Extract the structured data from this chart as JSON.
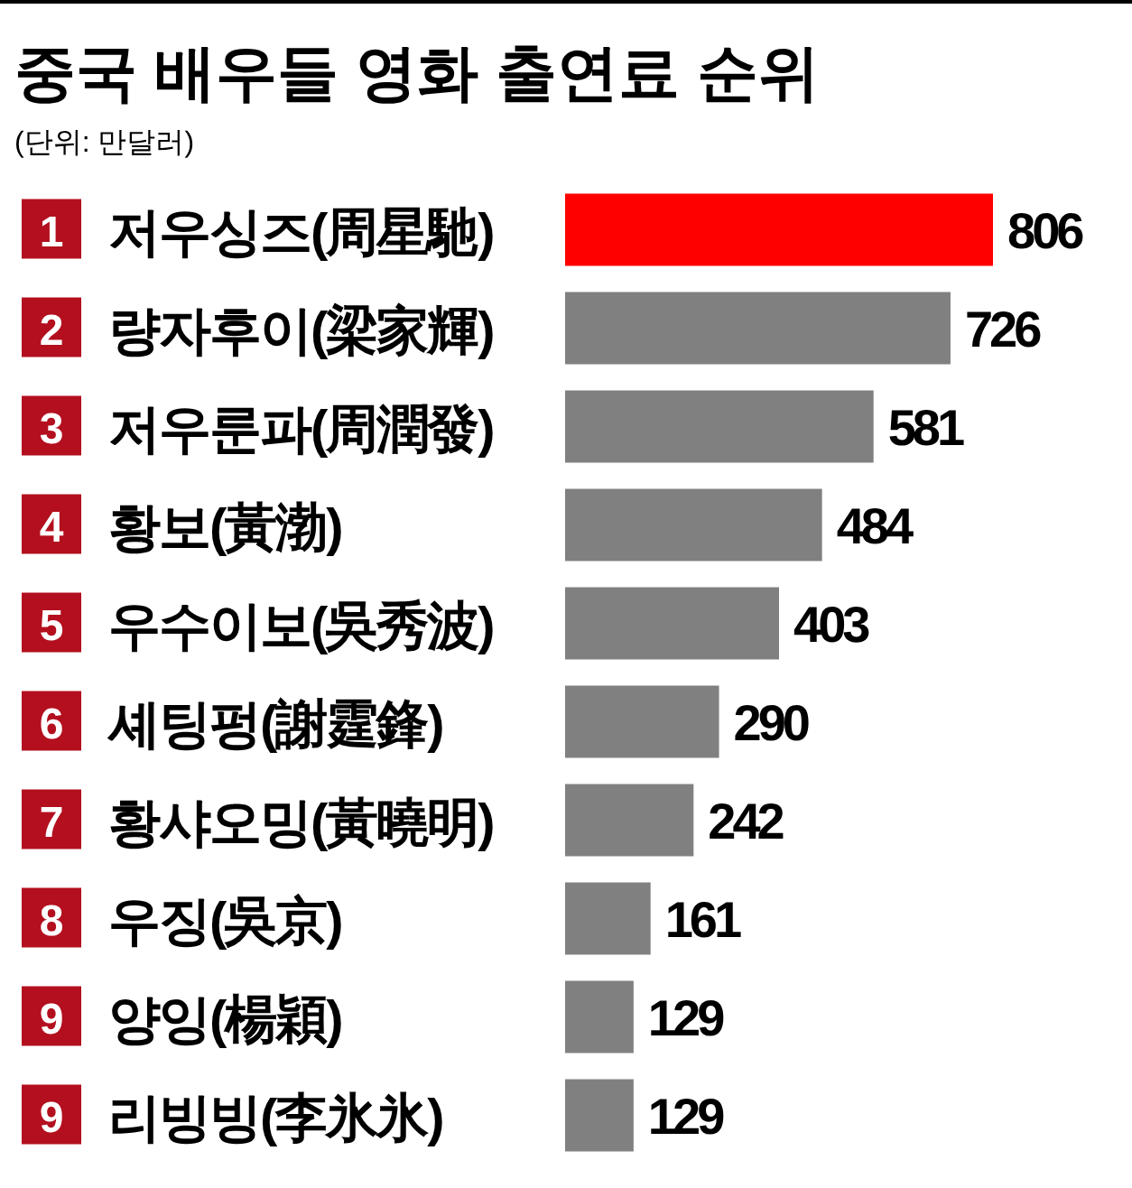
{
  "chart_data": {
    "type": "bar",
    "orientation": "horizontal",
    "title": "중국 배우들 영화 출연료 순위",
    "subtitle": "(단위: 만달러)",
    "categories": [
      "저우싱즈(周星馳)",
      "량자후이(梁家輝)",
      "저우룬파(周潤發)",
      "황보(黃渤)",
      "우수이보(吳秀波)",
      "셰팅펑(謝霆鋒)",
      "황샤오밍(黃曉明)",
      "우징(吳京)",
      "양잉(楊穎)",
      "리빙빙(李氷氷)"
    ],
    "values": [
      806,
      726,
      581,
      484,
      403,
      290,
      242,
      161,
      129,
      129
    ],
    "colors": [
      "#ff0000",
      "#808080",
      "#808080",
      "#808080",
      "#808080",
      "#808080",
      "#808080",
      "#808080",
      "#808080",
      "#808080"
    ],
    "data_labels": true,
    "annotations": [
      "1",
      "2",
      "3",
      "4",
      "5",
      "6",
      "7",
      "8",
      "9",
      "9"
    ]
  }
}
